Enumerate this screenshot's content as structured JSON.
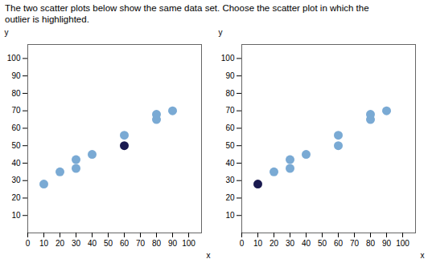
{
  "chart_data": [
    {
      "type": "scatter",
      "title": "The two scatter plots below show the same data set. Choose the scatter plot in which the",
      "subtitle": "outlier is highlighted.",
      "x": [
        10,
        20,
        30,
        30,
        40,
        60,
        60,
        80,
        80,
        90
      ],
      "values": [
        28,
        35,
        37,
        42,
        45,
        56,
        50,
        65,
        68,
        70
      ],
      "colors": [
        "#7aaad4",
        "#7aaad4",
        "#7aaad4",
        "#7aaad4",
        "#7aaad4",
        "#7aaad4",
        "#1a1a50",
        "#7aaad4",
        "#7aaad4",
        "#7aaad4"
      ],
      "xlabel": "x",
      "ylabel": "y",
      "xlim": [
        0,
        108
      ],
      "ylim": [
        0,
        108
      ],
      "xticks": [
        0,
        10,
        20,
        30,
        40,
        50,
        60,
        70,
        80,
        90,
        100
      ],
      "yticks": [
        10,
        20,
        30,
        40,
        50,
        60,
        70,
        80,
        90,
        100
      ]
    },
    {
      "type": "scatter",
      "x": [
        10,
        20,
        30,
        30,
        40,
        60,
        60,
        80,
        80,
        90
      ],
      "values": [
        28,
        35,
        37,
        42,
        45,
        56,
        50,
        65,
        68,
        70
      ],
      "colors": [
        "#1a1a50",
        "#7aaad4",
        "#7aaad4",
        "#7aaad4",
        "#7aaad4",
        "#7aaad4",
        "#7aaad4",
        "#7aaad4",
        "#7aaad4",
        "#7aaad4"
      ],
      "xlabel": "x",
      "ylabel": "y",
      "xlim": [
        0,
        108
      ],
      "ylim": [
        0,
        108
      ],
      "xticks": [
        0,
        10,
        20,
        30,
        40,
        50,
        60,
        70,
        80,
        90,
        100
      ],
      "yticks": [
        10,
        20,
        30,
        40,
        50,
        60,
        70,
        80,
        90,
        100
      ]
    }
  ]
}
